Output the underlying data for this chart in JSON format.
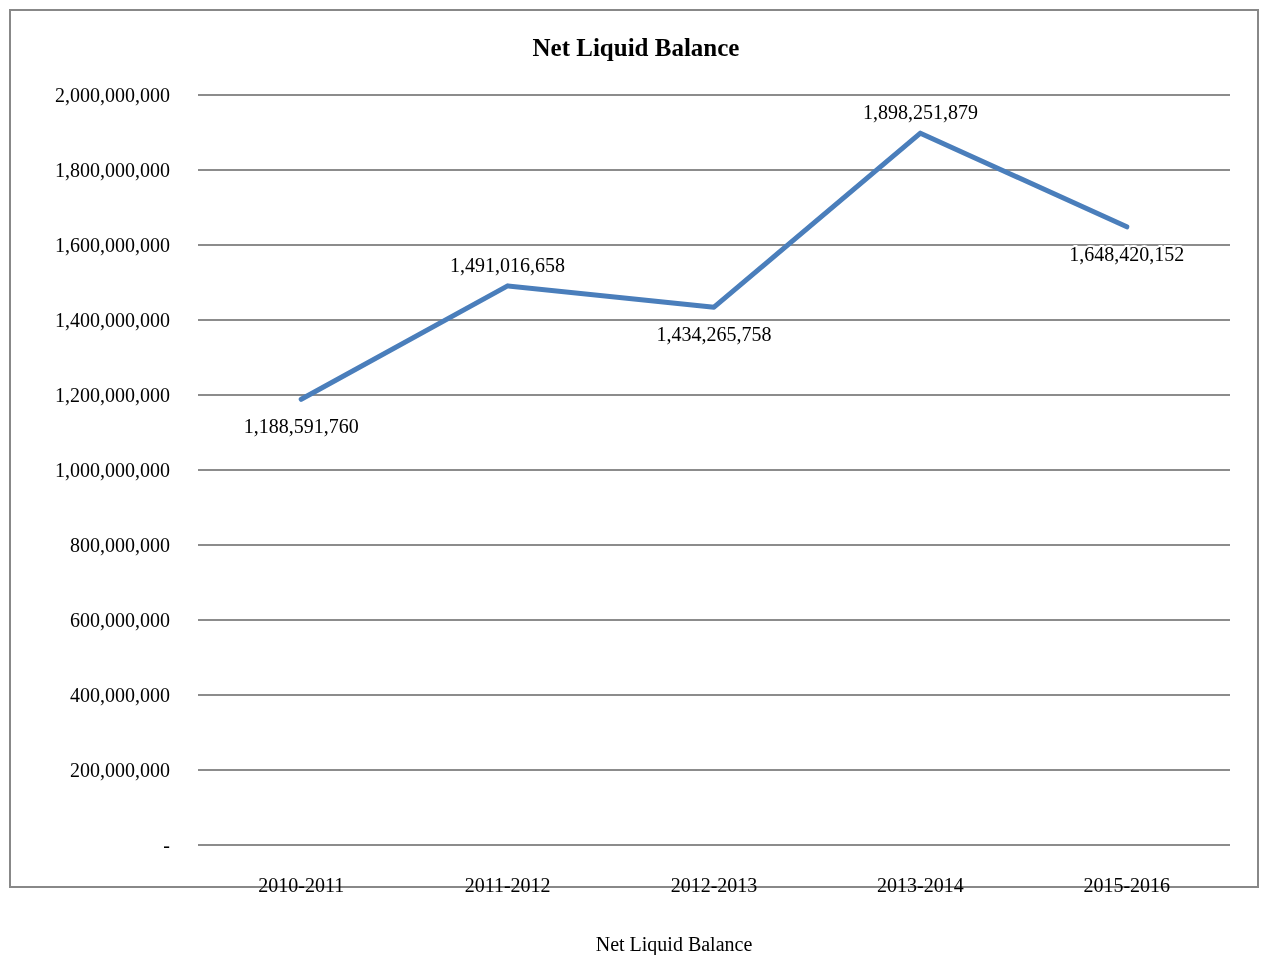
{
  "chart_data": {
    "type": "line",
    "title": "Net Liquid Balance",
    "xlabel": "Net Liquid Balance",
    "categories": [
      "2010-2011",
      "2011-2012",
      "2012-2013",
      "2013-2014",
      "2015-2016"
    ],
    "series": [
      {
        "color": "#4a7ebb",
        "values": [
          1188591760,
          1491016658,
          1434265758,
          1898251879,
          1648420152
        ],
        "value_labels": [
          "1,188,591,760",
          "1,491,016,658",
          "1,434,265,758",
          "1,898,251,879",
          "1,648,420,152"
        ]
      }
    ],
    "ylim": [
      0,
      2000000000
    ],
    "yticks": [
      {
        "value": 0,
        "label": "-"
      },
      {
        "value": 200000000,
        "label": "200,000,000"
      },
      {
        "value": 400000000,
        "label": "400,000,000"
      },
      {
        "value": 600000000,
        "label": "600,000,000"
      },
      {
        "value": 800000000,
        "label": "800,000,000"
      },
      {
        "value": 1000000000,
        "label": "1,000,000,000"
      },
      {
        "value": 1200000000,
        "label": "1,200,000,000"
      },
      {
        "value": 1400000000,
        "label": "1,400,000,000"
      },
      {
        "value": 1600000000,
        "label": "1,600,000,000"
      },
      {
        "value": 1800000000,
        "label": "1,800,000,000"
      },
      {
        "value": 2000000000,
        "label": "2,000,000,000"
      }
    ],
    "grid": "y",
    "marker": "none",
    "line_style": "solid"
  }
}
